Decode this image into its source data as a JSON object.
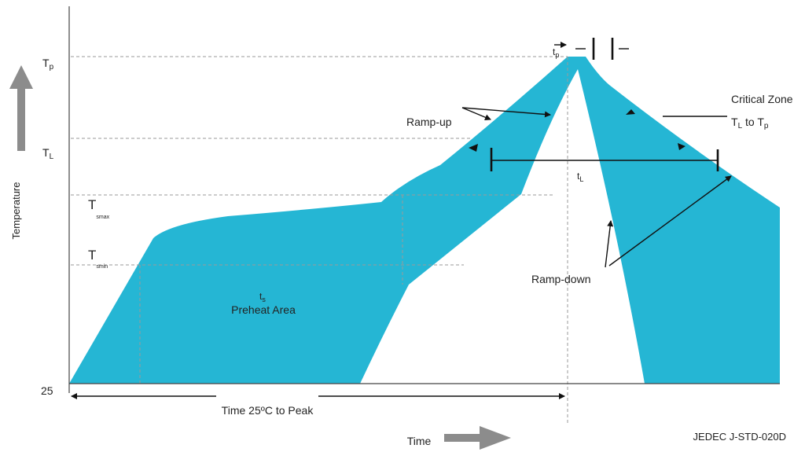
{
  "colors": {
    "profile_fill": "#25b6d4",
    "arrow_gray": "#8c8c8c",
    "guide_line": "#9a9a9a",
    "text": "#222222"
  },
  "y_axis": {
    "title": "Temperature",
    "levels": [
      {
        "main": "T",
        "sub": "p"
      },
      {
        "main": "T",
        "sub": "L"
      },
      {
        "main": "T",
        "sub": "smax"
      },
      {
        "main": "T",
        "sub": "smin"
      },
      {
        "main": "25",
        "sub": ""
      }
    ]
  },
  "x_axis": {
    "title": "Time"
  },
  "labels": {
    "tp": {
      "main": "t",
      "sub": "p"
    },
    "tl": {
      "main": "t",
      "sub": "L"
    },
    "ts": {
      "main": "t",
      "sub": "s"
    },
    "preheat": "Preheat Area",
    "ramp_up": "Ramp-up",
    "ramp_down": "Ramp-down",
    "critical_zone_title": "Critical Zone",
    "critical_zone_range": {
      "a_main": "T",
      "a_sub": "L",
      "mid": " to ",
      "b_main": "T",
      "b_sub": "p"
    },
    "time_to_peak": "Time 25ºC to Peak",
    "source": "JEDEC J-STD-020D"
  }
}
